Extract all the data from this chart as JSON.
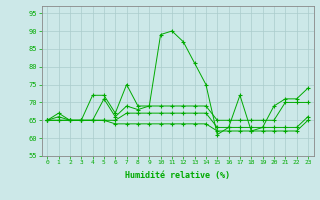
{
  "xlabel": "Humidité relative (%)",
  "background_color": "#cce8e8",
  "grid_color": "#aacccc",
  "line_color": "#00aa00",
  "xlim": [
    -0.5,
    23.5
  ],
  "ylim": [
    55,
    97
  ],
  "yticks": [
    55,
    60,
    65,
    70,
    75,
    80,
    85,
    90,
    95
  ],
  "xticks": [
    0,
    1,
    2,
    3,
    4,
    5,
    6,
    7,
    8,
    9,
    10,
    11,
    12,
    13,
    14,
    15,
    16,
    17,
    18,
    19,
    20,
    21,
    22,
    23
  ],
  "series": [
    [
      65,
      67,
      65,
      65,
      72,
      72,
      67,
      75,
      69,
      69,
      89,
      90,
      87,
      81,
      75,
      61,
      63,
      72,
      62,
      63,
      69,
      71,
      71,
      74
    ],
    [
      65,
      66,
      65,
      65,
      65,
      71,
      66,
      69,
      68,
      69,
      69,
      69,
      69,
      69,
      69,
      65,
      65,
      65,
      65,
      65,
      65,
      70,
      70,
      70
    ],
    [
      65,
      65,
      65,
      65,
      65,
      65,
      65,
      67,
      67,
      67,
      67,
      67,
      67,
      67,
      67,
      63,
      63,
      63,
      63,
      63,
      63,
      63,
      63,
      66
    ],
    [
      65,
      65,
      65,
      65,
      65,
      65,
      64,
      64,
      64,
      64,
      64,
      64,
      64,
      64,
      64,
      62,
      62,
      62,
      62,
      62,
      62,
      62,
      62,
      65
    ]
  ],
  "xlabel_fontsize": 6,
  "tick_fontsize": 4.5
}
